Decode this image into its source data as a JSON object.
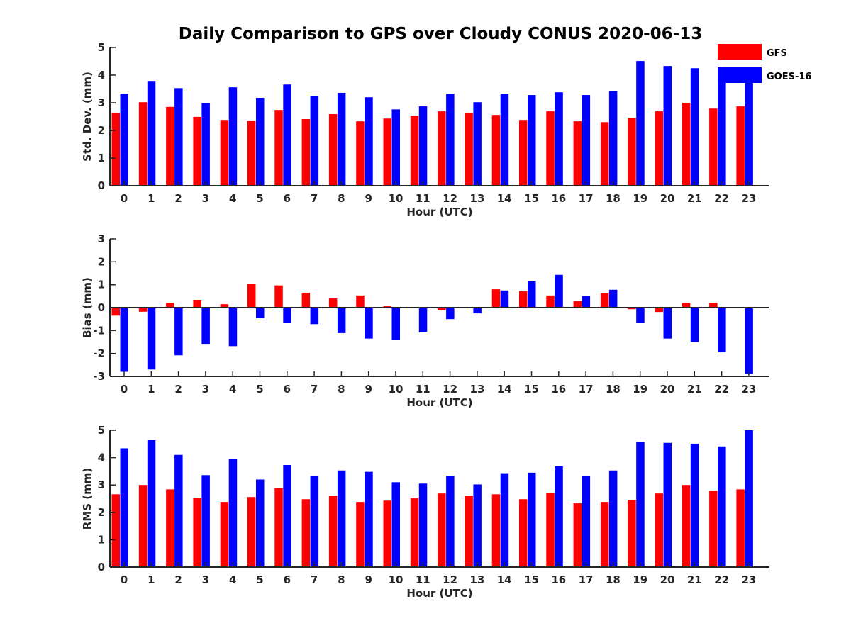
{
  "title": "Daily Comparison to GPS over Cloudy CONUS 2020-06-13",
  "legend": [
    {
      "name": "GFS",
      "color": "#ff0000"
    },
    {
      "name": "GOES-16",
      "color": "#0000ff"
    }
  ],
  "chart_data": [
    {
      "type": "bar",
      "xlabel": "Hour (UTC)",
      "ylabel": "Std. Dev. (mm)",
      "ylim": [
        0,
        5
      ],
      "yticks": [
        "0",
        "1",
        "2",
        "3",
        "4",
        "5"
      ],
      "categories": [
        "0",
        "1",
        "2",
        "3",
        "4",
        "5",
        "6",
        "7",
        "8",
        "9",
        "10",
        "11",
        "12",
        "13",
        "14",
        "15",
        "16",
        "17",
        "18",
        "19",
        "20",
        "21",
        "22",
        "23"
      ],
      "legend_placement": "top-right",
      "series": [
        {
          "name": "GFS",
          "color": "#ff0000",
          "values": [
            2.63,
            3.02,
            2.85,
            2.49,
            2.38,
            2.35,
            2.74,
            2.41,
            2.59,
            2.33,
            2.43,
            2.53,
            2.69,
            2.63,
            2.56,
            2.38,
            2.69,
            2.33,
            2.3,
            2.46,
            2.69,
            3.0,
            2.79,
            2.87
          ]
        },
        {
          "name": "GOES-16",
          "color": "#0000ff",
          "values": [
            3.33,
            3.79,
            3.53,
            2.99,
            3.56,
            3.18,
            3.66,
            3.25,
            3.36,
            3.2,
            2.76,
            2.87,
            3.33,
            3.02,
            3.33,
            3.28,
            3.38,
            3.28,
            3.43,
            4.51,
            4.33,
            4.25,
            3.96,
            3.76
          ]
        }
      ]
    },
    {
      "type": "bar",
      "xlabel": "Hour (UTC)",
      "ylabel": "Bias (mm)",
      "ylim": [
        -3,
        3
      ],
      "yticks": [
        "-3",
        "-2",
        "-1",
        "0",
        "1",
        "2",
        "3"
      ],
      "categories": [
        "0",
        "1",
        "2",
        "3",
        "4",
        "5",
        "6",
        "7",
        "8",
        "9",
        "10",
        "11",
        "12",
        "13",
        "14",
        "15",
        "16",
        "17",
        "18",
        "19",
        "20",
        "21",
        "22",
        "23"
      ],
      "series": [
        {
          "name": "GFS",
          "color": "#ff0000",
          "values": [
            -0.35,
            -0.18,
            0.21,
            0.34,
            0.15,
            1.05,
            0.97,
            0.65,
            0.4,
            0.53,
            0.06,
            0.0,
            -0.12,
            0.0,
            0.8,
            0.71,
            0.53,
            0.29,
            0.62,
            -0.07,
            -0.19,
            0.21,
            0.21,
            0.0
          ]
        },
        {
          "name": "GOES-16",
          "color": "#0000ff",
          "values": [
            -2.8,
            -2.7,
            -2.08,
            -1.58,
            -1.68,
            -0.46,
            -0.68,
            -0.72,
            -1.11,
            -1.35,
            -1.42,
            -1.08,
            -0.5,
            -0.25,
            0.75,
            1.15,
            1.43,
            0.5,
            0.78,
            -0.68,
            -1.35,
            -1.5,
            -1.95,
            -2.9
          ]
        }
      ]
    },
    {
      "type": "bar",
      "xlabel": "Hour (UTC)",
      "ylabel": "RMS (mm)",
      "ylim": [
        0,
        5
      ],
      "yticks": [
        "0",
        "1",
        "2",
        "3",
        "4",
        "5"
      ],
      "categories": [
        "0",
        "1",
        "2",
        "3",
        "4",
        "5",
        "6",
        "7",
        "8",
        "9",
        "10",
        "11",
        "12",
        "13",
        "14",
        "15",
        "16",
        "17",
        "18",
        "19",
        "20",
        "21",
        "22",
        "23"
      ],
      "series": [
        {
          "name": "GFS",
          "color": "#ff0000",
          "values": [
            2.66,
            3.0,
            2.84,
            2.52,
            2.38,
            2.56,
            2.89,
            2.48,
            2.61,
            2.38,
            2.43,
            2.51,
            2.69,
            2.61,
            2.66,
            2.48,
            2.71,
            2.33,
            2.38,
            2.46,
            2.69,
            3.0,
            2.79,
            2.84
          ]
        },
        {
          "name": "GOES-16",
          "color": "#0000ff",
          "values": [
            4.34,
            4.64,
            4.1,
            3.36,
            3.94,
            3.2,
            3.73,
            3.32,
            3.53,
            3.48,
            3.1,
            3.05,
            3.34,
            3.02,
            3.43,
            3.45,
            3.68,
            3.32,
            3.53,
            4.57,
            4.54,
            4.51,
            4.41,
            5.0
          ]
        }
      ]
    }
  ]
}
